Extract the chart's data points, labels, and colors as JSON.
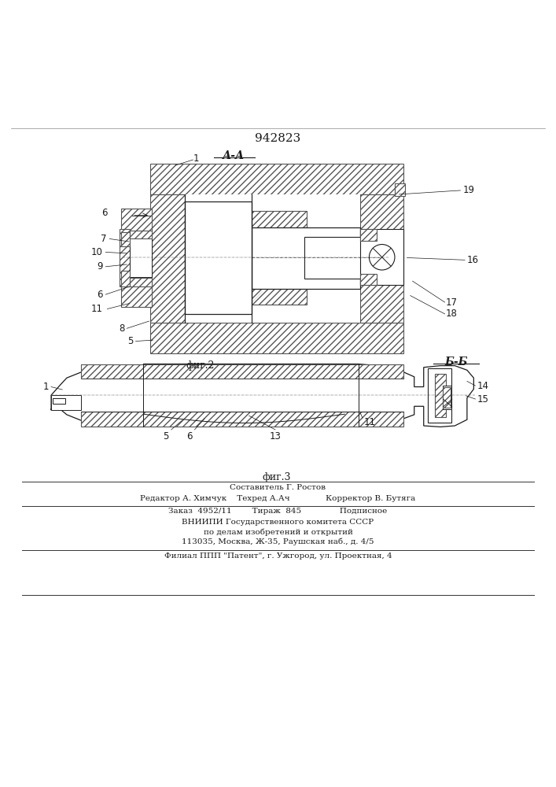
{
  "patent_number": "942823",
  "section_label_top": "А-А",
  "section_label_right": "Б-Б",
  "fig2_label": "фиг.2",
  "fig3_label": "фиг.3",
  "bg_color": "#ffffff",
  "drawing_color": "#1a1a1a",
  "footer_lines": [
    "Составитель Г. Ростов",
    "Редактор А. Химчук    Техред А.Ач              Корректор В. Бутяга",
    "Заказ  4952/11        Тираж  845               Подписное",
    "ВНИИПИ Государственного комитета СССР",
    "по делам изобретений и открытий",
    "113035, Москва, Ж-35, Раушская наб., д. 4/5",
    "Филиал ППП \"Патент\", г. Ужгород, ул. Проектная, 4"
  ]
}
